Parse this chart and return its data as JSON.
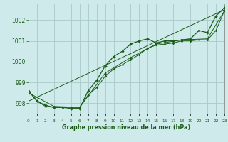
{
  "title": "Graphe pression niveau de la mer (hPa)",
  "background_color": "#ceeaea",
  "grid_color": "#aacaca",
  "line_color": "#1a5c1a",
  "x_min": 0,
  "x_max": 23,
  "y_min": 997.5,
  "y_max": 1002.8,
  "yticks": [
    998,
    999,
    1000,
    1001,
    1002
  ],
  "xticks": [
    0,
    1,
    2,
    3,
    4,
    5,
    6,
    7,
    8,
    9,
    10,
    11,
    12,
    13,
    14,
    15,
    16,
    17,
    18,
    19,
    20,
    21,
    22,
    23
  ],
  "series1": [
    [
      0,
      998.6
    ],
    [
      1,
      998.1
    ],
    [
      2,
      997.9
    ],
    [
      3,
      997.8
    ],
    [
      4,
      997.8
    ],
    [
      5,
      997.75
    ],
    [
      6,
      997.75
    ],
    [
      7,
      998.6
    ],
    [
      8,
      999.1
    ],
    [
      9,
      999.8
    ],
    [
      10,
      1000.25
    ],
    [
      11,
      1000.5
    ],
    [
      12,
      1000.85
    ],
    [
      13,
      1001.0
    ],
    [
      14,
      1001.1
    ],
    [
      15,
      1000.9
    ],
    [
      16,
      1001.0
    ],
    [
      17,
      1001.0
    ],
    [
      18,
      1001.05
    ],
    [
      19,
      1001.1
    ],
    [
      20,
      1001.5
    ],
    [
      21,
      1001.4
    ],
    [
      22,
      1002.2
    ],
    [
      23,
      1002.6
    ]
  ],
  "series2": [
    [
      0,
      998.6
    ],
    [
      1,
      998.1
    ],
    [
      2,
      997.85
    ],
    [
      3,
      997.8
    ],
    [
      4,
      997.8
    ],
    [
      5,
      997.8
    ],
    [
      6,
      997.8
    ],
    [
      7,
      998.4
    ],
    [
      8,
      998.75
    ],
    [
      9,
      999.3
    ],
    [
      10,
      999.65
    ],
    [
      11,
      999.85
    ],
    [
      12,
      1000.1
    ],
    [
      13,
      1000.35
    ],
    [
      14,
      1000.65
    ],
    [
      15,
      1000.8
    ],
    [
      16,
      1000.85
    ],
    [
      17,
      1000.9
    ],
    [
      18,
      1001.0
    ],
    [
      19,
      1001.0
    ],
    [
      20,
      1001.05
    ],
    [
      21,
      1001.05
    ],
    [
      22,
      1001.5
    ],
    [
      23,
      1002.45
    ]
  ],
  "series3": [
    [
      0,
      998.5
    ],
    [
      3,
      997.85
    ],
    [
      6,
      997.8
    ],
    [
      9,
      999.45
    ],
    [
      12,
      1000.2
    ],
    [
      15,
      1000.85
    ],
    [
      18,
      1001.05
    ],
    [
      21,
      1001.1
    ],
    [
      23,
      1002.45
    ]
  ],
  "series4_line": [
    [
      0,
      998.1
    ],
    [
      23,
      1002.5
    ]
  ]
}
